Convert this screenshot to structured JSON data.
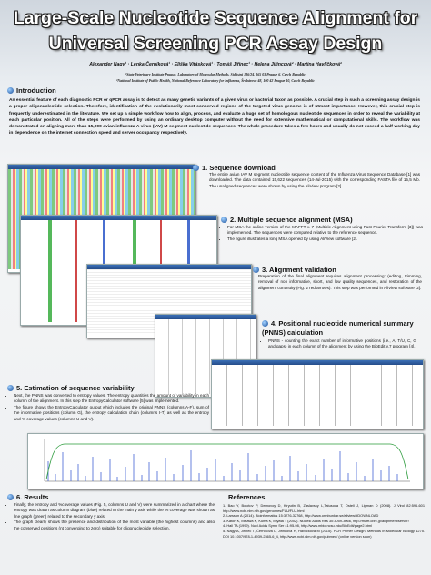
{
  "header": {
    "title": "Large-Scale Nucleotide Sequence Alignment for Universal Screening PCR Assay Design",
    "authors": "Alexander Nagy¹ · Lenka Černíková¹ · Eliška Vitásková¹ · Tomáš Jiřinec¹ · Helena Jiřincová² · Martina Havlíčková²",
    "affiliations": [
      "¹State Veterinary Institute Prague, Laboratory of Molecular Methods, Sidlistni 136/24, 165 03 Prague 6, Czech Republic",
      "²National Institute of Public Health, National Reference Laboratory for Influenza, Šrobárova 48, 100 42 Prague 10, Czech Republic"
    ]
  },
  "introduction": {
    "heading": "Introduction",
    "text": "An essential feature of each diagnostic PCR or qPCR assay is to detect as many genetic variants of a given virus or bacterial taxon as possible. A crucial step in such a screening assay design is a proper oligonucleotide selection. Therefore, identification of the evolutionarily most conserved regions of the targeted virus genome is of utmost importance. However, this crucial step is frequently underestimated in the literature. We set up a simple workflow how to align, process, and evaluate a huge set of homologous nucleotide sequences in order to reveal the variability at each particular position. All of the steps were performed by using an ordinary desktop computer without the need for extensive mathematical or computational skills. The workflow was demonstrated on aligning more than 15,000 avian influenza A virus (IAV) M segment nucleotide sequences. The whole procedure takes a few hours and usually do not exceed a half working day in dependence on the internet connection speed and server occupancy respectively."
  },
  "sections": [
    {
      "heading": "1. Sequence download",
      "paragraphs": [
        "The entire avian IAV M segment nucleotide sequence content of the Influenza Virus Sequence Database [1] was downloaded. The data contained 15,622 sequences (14-Jul-2015) with the corresponding FASTA file of 15,5 Mb. The unaligned sequences were shown by using the AliView program [2]."
      ]
    },
    {
      "heading": "2. Multiple sequence alignment (MSA)",
      "paragraphs": [
        "For MSA the online version of the MAFFT v. 7 (Multiple Alignment using Fast Fourier Transform [3]) was implemented. The sequences were compared relative to the reference sequence.",
        "The figure illustrates a long MSA opened by using AliView software [2]."
      ]
    },
    {
      "heading": "3. Alignment validation",
      "paragraphs": [
        "Preparation of the final alignment requires alignment processing: (editing, trimming, removal of non informative, short, and low quality sequences, and restoration of the alignment continuity (Fig. 2 red arrows). This step was performed in AliView software [2]."
      ]
    },
    {
      "heading": "4. Positional nucleotide numerical summary (PNNS) calculation",
      "paragraphs": [
        "PNNS - counting the exact number of informative positions (i.e., A, T/U, C, G and gaps) in each column of the alignment by using the BioEdit v.7 program [4]."
      ]
    },
    {
      "heading": "5. Estimation of sequence variability",
      "paragraphs": [
        "Next, the PNNS was converted to entropy values. The entropy quantities the amount of variability in each column of the alignment. In this step the EntropyCalculator software [5] was implemented.",
        "The figure shows the EntropyCalculator output which includes the original PNNS (columns A-F), sum of the informative positions (column G), the entropy calculation chain (columns I-T) as well as the entropy and % coverage values (columns U and V)."
      ]
    },
    {
      "heading": "6. Results",
      "paragraphs": [
        "Finally, the entropy and %coverage values (Fig. 5, columns U and V) were summarized in a chart where the entropy was drawn as column diagram (blue) related to the main y axis while the % coverage was shown as line graph (green) related to the secondary y axis.",
        "The graph clearly shows the presence and distribution of the most variable (the highest columns) and also the conserved positions (nt converging to zero) suitable for oligonucleotide selection."
      ]
    }
  ],
  "references": {
    "heading": "References",
    "items": [
      "1. Bao Y, Bolotov P, Dernovoy D, Kiryutin B, Zaslavsky L,Tatusova T, Ostell J, Lipman D (2008). J Virol 82:596-601 http://www.ncbi.nlm.nih.gov/genomes/FLU/FLU.html",
      "2. Larsson A (2014). Bioinformatics 15:3276-32768, http://www.ormbunkar.se/aliview/#DOWNLOAD",
      "3. Katoh K, Misawa K, Kuma K, Miyata T (2002). Nucleic Acids Res 30:3059-3066, http://mafft.cbrc.jp/alignment/server/",
      "4. Hall TA (1999). Nucl Acids Symp Ser 41:95-98, http://www.mbio.ncsu.edu/BioEdit/page2.html",
      "5. Nagy A, Jiřinec T, Černíková L, Jiřincová H, Havlíčková M (2015). PCR Primer Design, Methods in Molecular Biology 1275. DOI 10.1007/978-1-4939-2365-6_4, http://www.ncbi.nlm.nih.gov/pubmed/ (online version soon)"
    ]
  }
}
